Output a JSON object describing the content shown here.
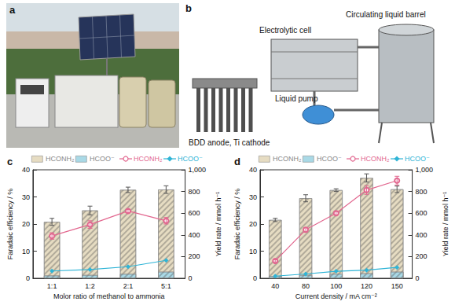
{
  "photo": {
    "label": "a"
  },
  "diagram": {
    "label": "b",
    "parts": {
      "barrel": "Circulating liquid barrel",
      "cell": "Electrolytic cell",
      "pump": "Liquid pump",
      "electrodes": "BDD anode, Ti cathode"
    }
  },
  "chart_data": [
    {
      "type": "bar",
      "title": "c",
      "categories": [
        "1:1",
        "1:2",
        "2:1",
        "5:1"
      ],
      "x_label": "Molor ratio of methanol to ammonia",
      "y_label": "Faradaic efficiency / %",
      "y2_label": "Yield rate / mmol h⁻¹",
      "ylim": [
        0,
        40
      ],
      "yticks": [
        0,
        10,
        20,
        30,
        40
      ],
      "y2lim": [
        0,
        1000
      ],
      "y2ticks": [
        0,
        200,
        400,
        600,
        800,
        1000
      ],
      "grid": false,
      "legend": "top",
      "series": [
        {
          "name": "HCONH₂",
          "type": "bar",
          "color": "#e6dcc2",
          "values": [
            20.8,
            25.0,
            32.6,
            32.7
          ],
          "errors": [
            1.3,
            1.6,
            1.0,
            1.4
          ]
        },
        {
          "name": "HCOO⁻",
          "type": "bar",
          "color": "#a9d9e6",
          "values": [
            1.0,
            1.2,
            1.6,
            2.4
          ]
        },
        {
          "name": "HCONH₂",
          "type": "line",
          "axis": "y2",
          "color": "#e2678f",
          "marker": "open_circle",
          "values": [
            390,
            495,
            620,
            530
          ],
          "errors": [
            30,
            35,
            15,
            30
          ]
        },
        {
          "name": "HCOO⁻",
          "type": "line",
          "axis": "y2",
          "color": "#2fb4d6",
          "marker": "diamond",
          "values": [
            67,
            80,
            107,
            165
          ]
        }
      ]
    },
    {
      "type": "bar",
      "title": "d",
      "categories": [
        "40",
        "80",
        "100",
        "120",
        "150"
      ],
      "x_label": "Current density / mA cm⁻²",
      "y_label": "Faradaic efficiency / %",
      "y2_label": "Yield rate / mmol h⁻¹",
      "ylim": [
        0,
        40
      ],
      "yticks": [
        0,
        10,
        20,
        30,
        40
      ],
      "y2lim": [
        0,
        1000
      ],
      "y2ticks": [
        0,
        200,
        400,
        600,
        800,
        1000
      ],
      "grid": false,
      "legend": "top",
      "series": [
        {
          "name": "HCONH₂",
          "type": "bar",
          "color": "#e6dcc2",
          "values": [
            21.5,
            29.5,
            32.5,
            37.0,
            32.8
          ],
          "errors": [
            0.6,
            1.3,
            0.5,
            1.5,
            1.2
          ]
        },
        {
          "name": "HCOO⁻",
          "type": "bar",
          "color": "#a9d9e6",
          "values": [
            0.8,
            1.2,
            1.6,
            1.8,
            2.4
          ]
        },
        {
          "name": "HCONH₂",
          "type": "line",
          "axis": "y2",
          "color": "#e2678f",
          "marker": "open_circle",
          "values": [
            160,
            447,
            600,
            813,
            900
          ],
          "errors": [
            10,
            20,
            15,
            40,
            40
          ]
        },
        {
          "name": "HCOO⁻",
          "type": "line",
          "axis": "y2",
          "color": "#2fb4d6",
          "marker": "diamond",
          "values": [
            20,
            40,
            65,
            75,
            100
          ]
        }
      ]
    }
  ]
}
